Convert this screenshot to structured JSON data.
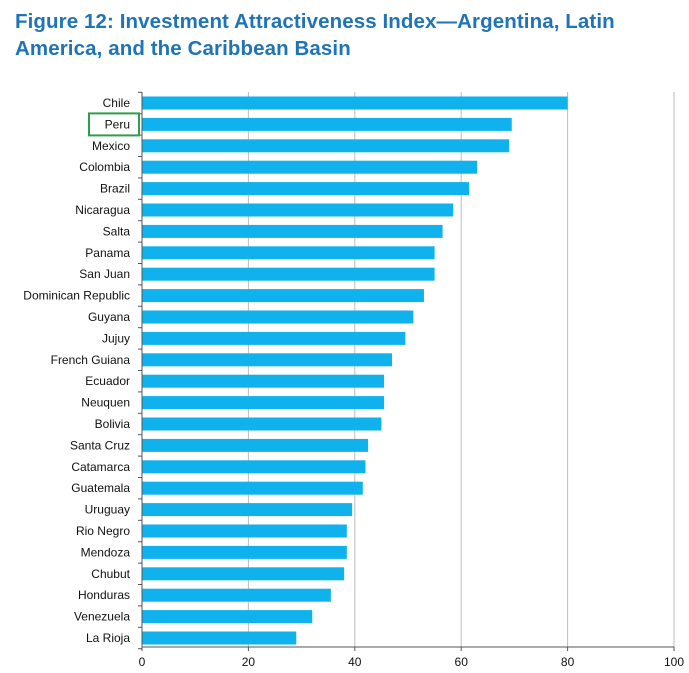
{
  "figure": {
    "title": "Figure 12: Investment Attractiveness Index—Argentina, Latin America, and the Caribbean Basin"
  },
  "highlight": {
    "category": "Peru",
    "color": "#2e9e4a"
  },
  "colors": {
    "title": "#1f74b6",
    "bar": "#0fb2ec",
    "grid": "#bdbdbd",
    "axis": "#555555"
  },
  "chart_data": {
    "type": "bar",
    "orientation": "horizontal",
    "title": "",
    "xlabel": "",
    "ylabel": "",
    "xlim": [
      0,
      100
    ],
    "xticks": [
      0,
      20,
      40,
      60,
      80,
      100
    ],
    "grid": true,
    "legend": "none",
    "categories": [
      "Chile",
      "Peru",
      "Mexico",
      "Colombia",
      "Brazil",
      "Nicaragua",
      "Salta",
      "Panama",
      "San Juan",
      "Dominican Republic",
      "Guyana",
      "Jujuy",
      "French Guiana",
      "Ecuador",
      "Neuquen",
      "Bolivia",
      "Santa Cruz",
      "Catamarca",
      "Guatemala",
      "Uruguay",
      "Rio Negro",
      "Mendoza",
      "Chubut",
      "Honduras",
      "Venezuela",
      "La Rioja"
    ],
    "values": [
      80,
      69.5,
      69,
      63,
      61.5,
      58.5,
      56.5,
      55,
      55,
      53,
      51,
      49.5,
      47,
      45.5,
      45.5,
      45,
      42.5,
      42,
      41.5,
      39.5,
      38.5,
      38.5,
      38,
      35.5,
      32,
      29
    ]
  }
}
